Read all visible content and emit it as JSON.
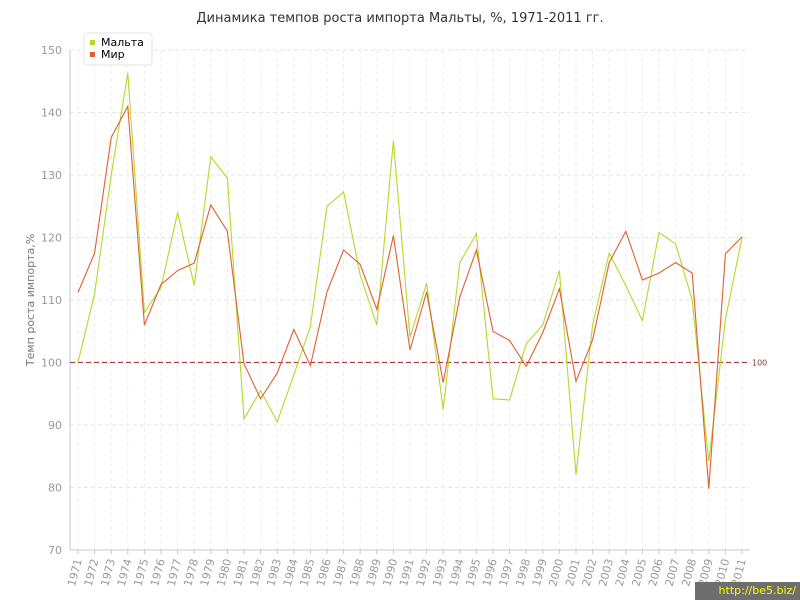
{
  "chart_data": {
    "type": "line",
    "title": "Динамика темпов роста импорта Мальты, %, 1971-2011 гг.",
    "xlabel": "",
    "ylabel": "Темп роста импорта,%",
    "ylim": [
      70,
      150
    ],
    "yticks": [
      70,
      80,
      90,
      100,
      110,
      120,
      130,
      140,
      150
    ],
    "grid": true,
    "legend": "top-left",
    "x": [
      "1971",
      "1972",
      "1973",
      "1974",
      "1975",
      "1976",
      "1977",
      "1978",
      "1979",
      "1980",
      "1981",
      "1982",
      "1983",
      "1984",
      "1985",
      "1986",
      "1987",
      "1988",
      "1989",
      "1990",
      "1991",
      "1992",
      "1993",
      "1994",
      "1995",
      "1996",
      "1997",
      "1998",
      "1999",
      "2000",
      "2001",
      "2002",
      "2003",
      "2004",
      "2005",
      "2006",
      "2007",
      "2008",
      "2009",
      "2010",
      "2011"
    ],
    "series": [
      {
        "name": "Мальта",
        "color": "#b6d82a",
        "values": [
          100.0,
          111.0,
          130.0,
          146.3,
          108.0,
          112.0,
          124.0,
          112.3,
          132.9,
          129.5,
          91.0,
          95.5,
          90.5,
          98.0,
          105.8,
          125.0,
          127.3,
          114.0,
          106.0,
          135.5,
          104.0,
          112.7,
          92.5,
          116.0,
          120.6,
          94.2,
          94.0,
          103.0,
          106.0,
          114.7,
          82.0,
          106.0,
          117.5,
          112.3,
          106.7,
          120.8,
          119.0,
          110.0,
          84.2,
          106.9,
          120.0
        ]
      },
      {
        "name": "Мир",
        "color": "#e0602f",
        "values": [
          111.2,
          117.5,
          136.0,
          141.0,
          106.0,
          112.5,
          114.7,
          115.9,
          125.2,
          121.0,
          99.8,
          94.2,
          98.3,
          105.3,
          99.5,
          111.3,
          118.0,
          115.7,
          108.5,
          120.3,
          102.0,
          111.3,
          96.8,
          110.5,
          118.0,
          105.0,
          103.5,
          99.4,
          104.8,
          111.8,
          97.0,
          103.6,
          116.0,
          121.0,
          113.2,
          114.3,
          116.0,
          114.3,
          79.8,
          117.4,
          120.1
        ]
      }
    ],
    "reference_line": {
      "value": 100,
      "label": "100",
      "color": "#a04545"
    }
  },
  "watermark": "http://be5.biz/"
}
